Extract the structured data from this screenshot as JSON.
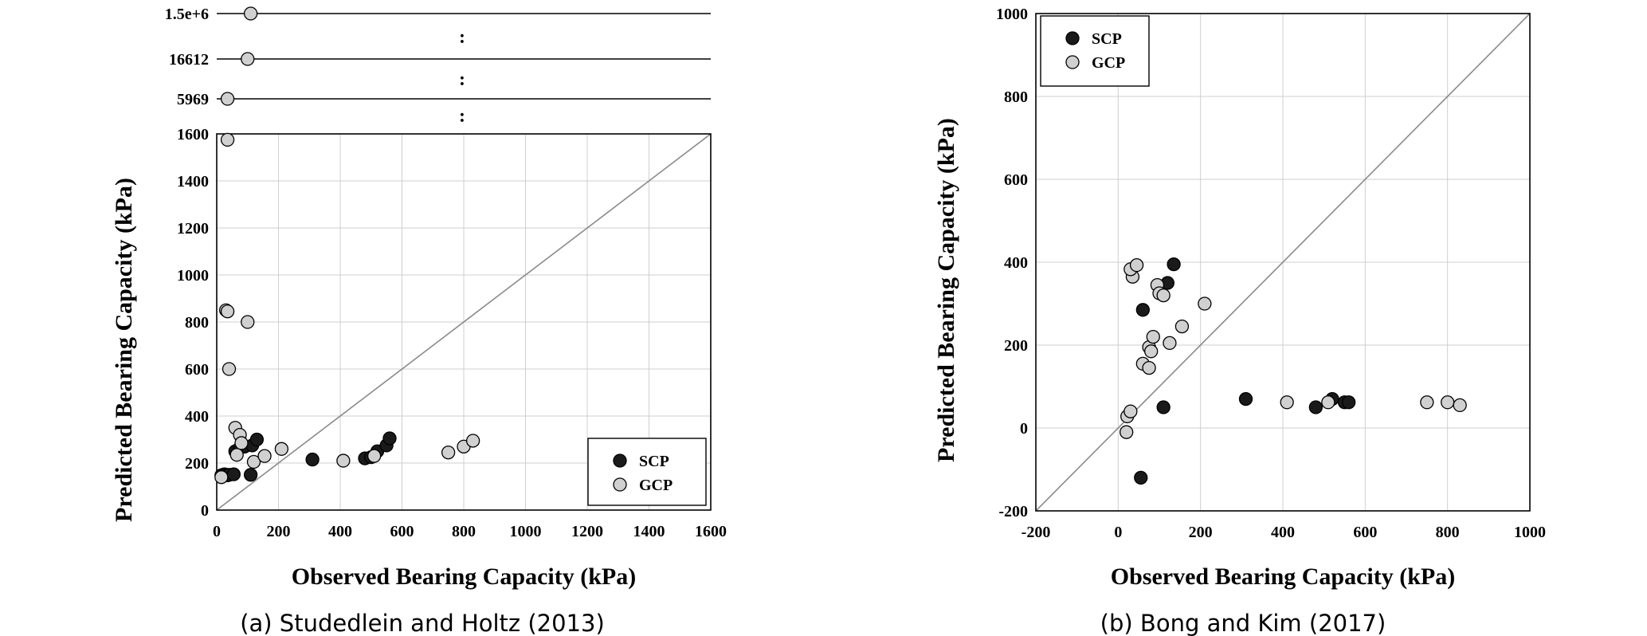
{
  "chart_data": [
    {
      "type": "scatter",
      "caption": "(a) Studedlein and Holtz (2013)",
      "xlabel": "Observed Bearing Capacity (kPa)",
      "ylabel": "Predicted Bearing Capacity (kPa)",
      "xlim": [
        0,
        1600
      ],
      "ylim": [
        0,
        1600
      ],
      "xticks": [
        "0",
        "200",
        "400",
        "600",
        "800",
        "1000",
        "1200",
        "1400",
        "1600"
      ],
      "yticks": [
        "0",
        "200",
        "400",
        "600",
        "800",
        "1000",
        "1200",
        "1400",
        "1600"
      ],
      "grid": true,
      "reference_line": "1:1",
      "legend": {
        "position": "bottom-right",
        "entries": [
          "SCP",
          "GCP"
        ]
      },
      "outliers": [
        {
          "label": "1.5e+6",
          "x": 110,
          "series": "GCP"
        },
        {
          "label": "16612",
          "x": 100,
          "series": "GCP"
        },
        {
          "label": "5969",
          "x": 35,
          "series": "GCP"
        }
      ],
      "break_marker": ":",
      "series": [
        {
          "name": "SCP",
          "color": "#1a1a1a",
          "points": [
            [
              15,
              148
            ],
            [
              20,
              150
            ],
            [
              25,
              152
            ],
            [
              30,
              150
            ],
            [
              35,
              148
            ],
            [
              40,
              150
            ],
            [
              55,
              152
            ],
            [
              60,
              250
            ],
            [
              75,
              265
            ],
            [
              90,
              270
            ],
            [
              110,
              150
            ],
            [
              115,
              275
            ],
            [
              130,
              300
            ],
            [
              310,
              215
            ],
            [
              480,
              220
            ],
            [
              500,
              225
            ],
            [
              520,
              250
            ],
            [
              550,
              275
            ],
            [
              560,
              305
            ]
          ]
        },
        {
          "name": "GCP",
          "color": "#d0d0d0",
          "points": [
            [
              15,
              140
            ],
            [
              35,
              1575
            ],
            [
              30,
              850
            ],
            [
              35,
              845
            ],
            [
              100,
              800
            ],
            [
              40,
              600
            ],
            [
              60,
              350
            ],
            [
              75,
              320
            ],
            [
              65,
              235
            ],
            [
              80,
              285
            ],
            [
              120,
              205
            ],
            [
              155,
              230
            ],
            [
              210,
              260
            ],
            [
              410,
              210
            ],
            [
              510,
              230
            ],
            [
              750,
              245
            ],
            [
              800,
              270
            ],
            [
              830,
              295
            ]
          ]
        }
      ]
    },
    {
      "type": "scatter",
      "caption": "(b) Bong and Kim (2017)",
      "xlabel": "Observed Bearing Capacity (kPa)",
      "ylabel": "Predicted Bearing Capacity (kPa)",
      "xlim": [
        -200,
        1000
      ],
      "ylim": [
        -200,
        1000
      ],
      "xticks": [
        "-200",
        "0",
        "200",
        "400",
        "600",
        "800",
        "1000"
      ],
      "yticks": [
        "-200",
        "0",
        "200",
        "400",
        "600",
        "800",
        "1000"
      ],
      "grid": true,
      "reference_line": "1:1",
      "legend": {
        "position": "top-left",
        "entries": [
          "SCP",
          "GCP"
        ]
      },
      "series": [
        {
          "name": "SCP",
          "color": "#1a1a1a",
          "points": [
            [
              55,
              -120
            ],
            [
              60,
              285
            ],
            [
              110,
              50
            ],
            [
              120,
              350
            ],
            [
              135,
              395
            ],
            [
              310,
              70
            ],
            [
              480,
              50
            ],
            [
              520,
              70
            ],
            [
              550,
              62
            ],
            [
              560,
              62
            ]
          ]
        },
        {
          "name": "GCP",
          "color": "#d0d0d0",
          "points": [
            [
              20,
              -10
            ],
            [
              22,
              28
            ],
            [
              30,
              40
            ],
            [
              35,
              365
            ],
            [
              30,
              383
            ],
            [
              45,
              393
            ],
            [
              60,
              155
            ],
            [
              75,
              195
            ],
            [
              75,
              145
            ],
            [
              80,
              185
            ],
            [
              85,
              220
            ],
            [
              95,
              345
            ],
            [
              100,
              325
            ],
            [
              110,
              320
            ],
            [
              125,
              205
            ],
            [
              155,
              245
            ],
            [
              210,
              300
            ],
            [
              410,
              62
            ],
            [
              510,
              62
            ],
            [
              750,
              62
            ],
            [
              800,
              62
            ],
            [
              830,
              55
            ]
          ]
        }
      ]
    }
  ]
}
